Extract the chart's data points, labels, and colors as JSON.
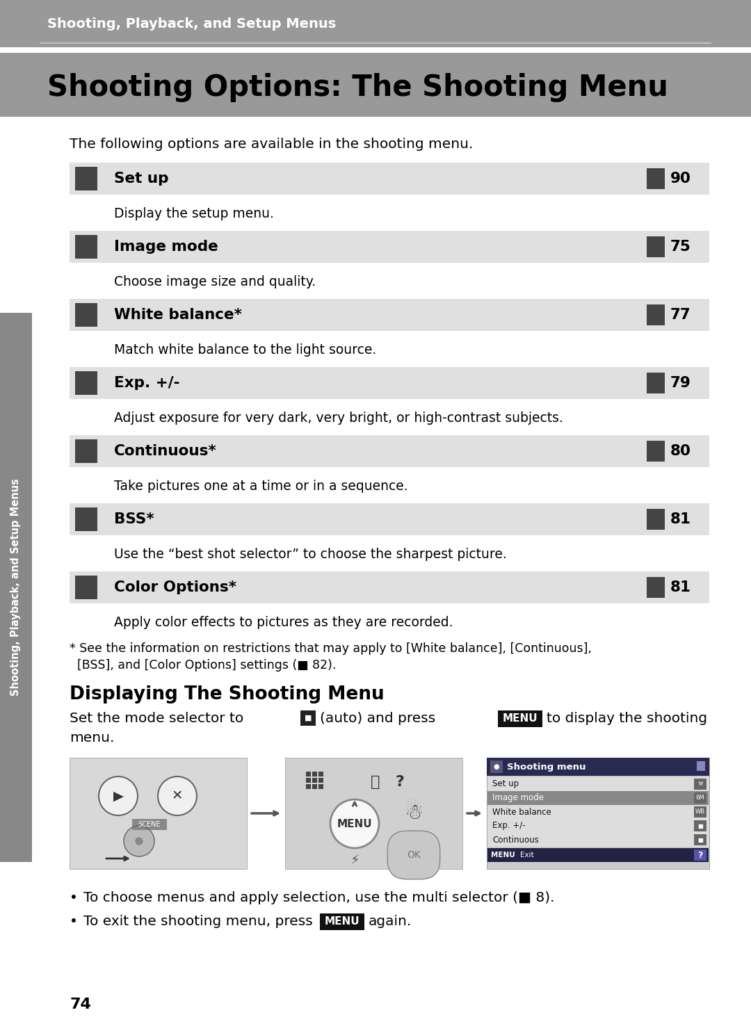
{
  "page_bg": "#ffffff",
  "header_bg": "#999999",
  "header_text": "Shooting, Playback, and Setup Menus",
  "header_text_color": "#ffffff",
  "title": "Shooting Options: The Shooting Menu",
  "title_color": "#000000",
  "intro": "The following options are available in the shooting menu.",
  "row_bg": "#e0e0e0",
  "row_text_color": "#000000",
  "desc_text_color": "#000000",
  "sidebar_bg": "#888888",
  "sidebar_text": "Shooting, Playback, and Setup Menus",
  "sidebar_text_color": "#ffffff",
  "page_number": "74",
  "menu_items": [
    {
      "label": "Set up",
      "page": "90",
      "desc": "Display the setup menu."
    },
    {
      "label": "Image mode",
      "page": "75",
      "desc": "Choose image size and quality."
    },
    {
      "label": "White balance*",
      "page": "77",
      "desc": "Match white balance to the light source."
    },
    {
      "label": "Exp. +/-",
      "page": "79",
      "desc": "Adjust exposure for very dark, very bright, or high-contrast subjects."
    },
    {
      "label": "Continuous*",
      "page": "80",
      "desc": "Take pictures one at a time or in a sequence."
    },
    {
      "label": "BSS*",
      "page": "81",
      "desc": "Use the “best shot selector” to choose the sharpest picture."
    },
    {
      "label": "Color Options*",
      "page": "81",
      "desc": "Apply color effects to pictures as they are recorded."
    }
  ],
  "footnote_lines": [
    "* See the information on restrictions that may apply to [White balance], [Continuous],",
    "  [BSS], and [Color Options] settings (■ 82)."
  ],
  "section2_title": "Displaying The Shooting Menu",
  "menu_screen_entries": [
    "Set up",
    "Image mode",
    "White balance",
    "Exp. +/-",
    "Continuous"
  ],
  "menu_screen_icons": [
    "⚒",
    "6M",
    "WB",
    "■",
    "■"
  ],
  "menu_screen_highlight": 1,
  "bullet1": "To choose menus and apply selection, use the multi selector (■ 8).",
  "bullet2_pre": "To exit the shooting menu, press",
  "bullet2_post": "again."
}
